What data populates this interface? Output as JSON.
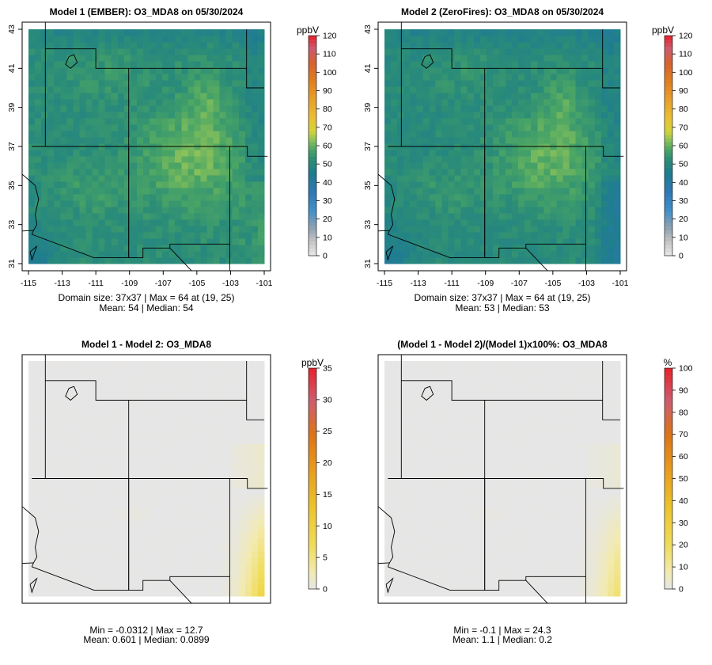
{
  "chart_data": [
    {
      "type": "heatmap",
      "title": "Model 1 (EMBER): O3_MDA8 on 05/30/2024",
      "units": "ppbV",
      "x_ticks": [
        "-115",
        "-113",
        "-111",
        "-109",
        "-107",
        "-105",
        "-103",
        "-101"
      ],
      "y_ticks": [
        "31",
        "33",
        "35",
        "37",
        "39",
        "41",
        "43"
      ],
      "xlim": [
        -115,
        -101
      ],
      "ylim": [
        31,
        43
      ],
      "colorbar": {
        "min": 0,
        "max": 120,
        "ticks": [
          "0",
          "10",
          "20",
          "30",
          "40",
          "50",
          "60",
          "70",
          "80",
          "90",
          "100",
          "110",
          "120"
        ]
      },
      "stats_line1": "Domain size: 37x37 | Max = 64 at (19, 25)",
      "stats_line2": "Mean: 54 |  Median: 54",
      "field": {
        "kind": "conc",
        "mean": 54,
        "max": 64,
        "variant": "ember"
      }
    },
    {
      "type": "heatmap",
      "title": "Model 2 (ZeroFires): O3_MDA8 on 05/30/2024",
      "units": "ppbV",
      "x_ticks": [
        "-115",
        "-113",
        "-111",
        "-109",
        "-107",
        "-105",
        "-103",
        "-101"
      ],
      "y_ticks": [
        "31",
        "33",
        "35",
        "37",
        "39",
        "41",
        "43"
      ],
      "xlim": [
        -115,
        -101
      ],
      "ylim": [
        31,
        43
      ],
      "colorbar": {
        "min": 0,
        "max": 120,
        "ticks": [
          "0",
          "10",
          "20",
          "30",
          "40",
          "50",
          "60",
          "70",
          "80",
          "90",
          "100",
          "110",
          "120"
        ]
      },
      "stats_line1": "Domain size: 37x37 | Max = 64 at (19, 25)",
      "stats_line2": "Mean: 53 |  Median: 53",
      "field": {
        "kind": "conc",
        "mean": 53,
        "max": 64,
        "variant": "zerofires"
      }
    },
    {
      "type": "heatmap",
      "title": "Model 1 - Model 2: O3_MDA8",
      "units": "ppbV",
      "x_ticks": [],
      "y_ticks": [],
      "xlim": [
        -115,
        -101
      ],
      "ylim": [
        31,
        43
      ],
      "colorbar": {
        "min": 0,
        "max": 35,
        "ticks": [
          "0",
          "5",
          "10",
          "15",
          "20",
          "25",
          "30",
          "35"
        ]
      },
      "stats_line1": "Min = -0.0312 | Max = 12.7",
      "stats_line2": "Mean: 0.601 |  Median: 0.0899",
      "field": {
        "kind": "diff",
        "max": 12.7,
        "scale_max": 35
      }
    },
    {
      "type": "heatmap",
      "title": "(Model 1 - Model 2)/(Model 1)x100%: O3_MDA8",
      "units": "%",
      "x_ticks": [],
      "y_ticks": [],
      "xlim": [
        -115,
        -101
      ],
      "ylim": [
        31,
        43
      ],
      "colorbar": {
        "min": 0,
        "max": 100,
        "ticks": [
          "0",
          "10",
          "20",
          "30",
          "40",
          "50",
          "60",
          "70",
          "80",
          "90",
          "100"
        ]
      },
      "stats_line1": "Min = -0.1 | Max = 24.3",
      "stats_line2": "Mean: 1.1 |  Median: 0.2",
      "field": {
        "kind": "diff",
        "max": 24.3,
        "scale_max": 100
      }
    }
  ]
}
